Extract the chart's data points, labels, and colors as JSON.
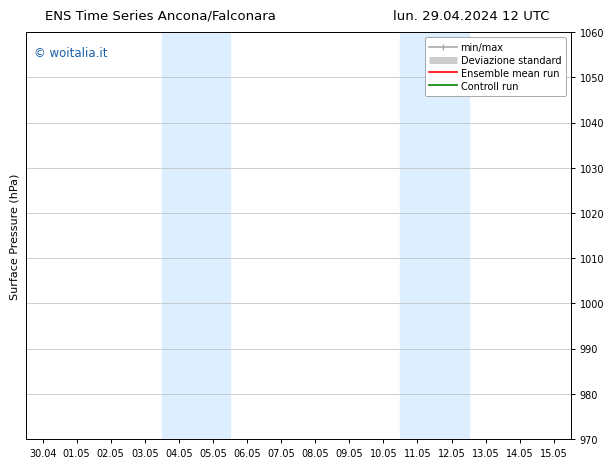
{
  "title_left": "ENS Time Series Ancona/Falconara",
  "title_right": "lun. 29.04.2024 12 UTC",
  "ylabel": "Surface Pressure (hPa)",
  "xlim_dates": [
    "30.04",
    "01.05",
    "02.05",
    "03.05",
    "04.05",
    "05.05",
    "06.05",
    "07.05",
    "08.05",
    "09.05",
    "10.05",
    "11.05",
    "12.05",
    "13.05",
    "14.05",
    "15.05"
  ],
  "ylim": [
    970,
    1060
  ],
  "yticks": [
    970,
    980,
    990,
    1000,
    1010,
    1020,
    1030,
    1040,
    1050,
    1060
  ],
  "shaded_regions": [
    {
      "xstart": 4.0,
      "xend": 6.0
    },
    {
      "xstart": 11.0,
      "xend": 13.0
    }
  ],
  "shaded_color": "#ddeeff",
  "watermark_text": "© woitalia.it",
  "watermark_color": "#1a5fa8",
  "legend_entries": [
    {
      "label": "min/max",
      "color": "#aaaaaa",
      "lw": 1.2
    },
    {
      "label": "Deviazione standard",
      "color": "#cccccc",
      "lw": 5
    },
    {
      "label": "Ensemble mean run",
      "color": "red",
      "lw": 1.2
    },
    {
      "label": "Controll run",
      "color": "green",
      "lw": 1.2
    }
  ],
  "background_color": "#ffffff",
  "grid_color": "#bbbbbb",
  "tick_fontsize": 7,
  "axis_label_fontsize": 8,
  "title_fontsize": 9.5,
  "watermark_fontsize": 8.5,
  "legend_fontsize": 7
}
